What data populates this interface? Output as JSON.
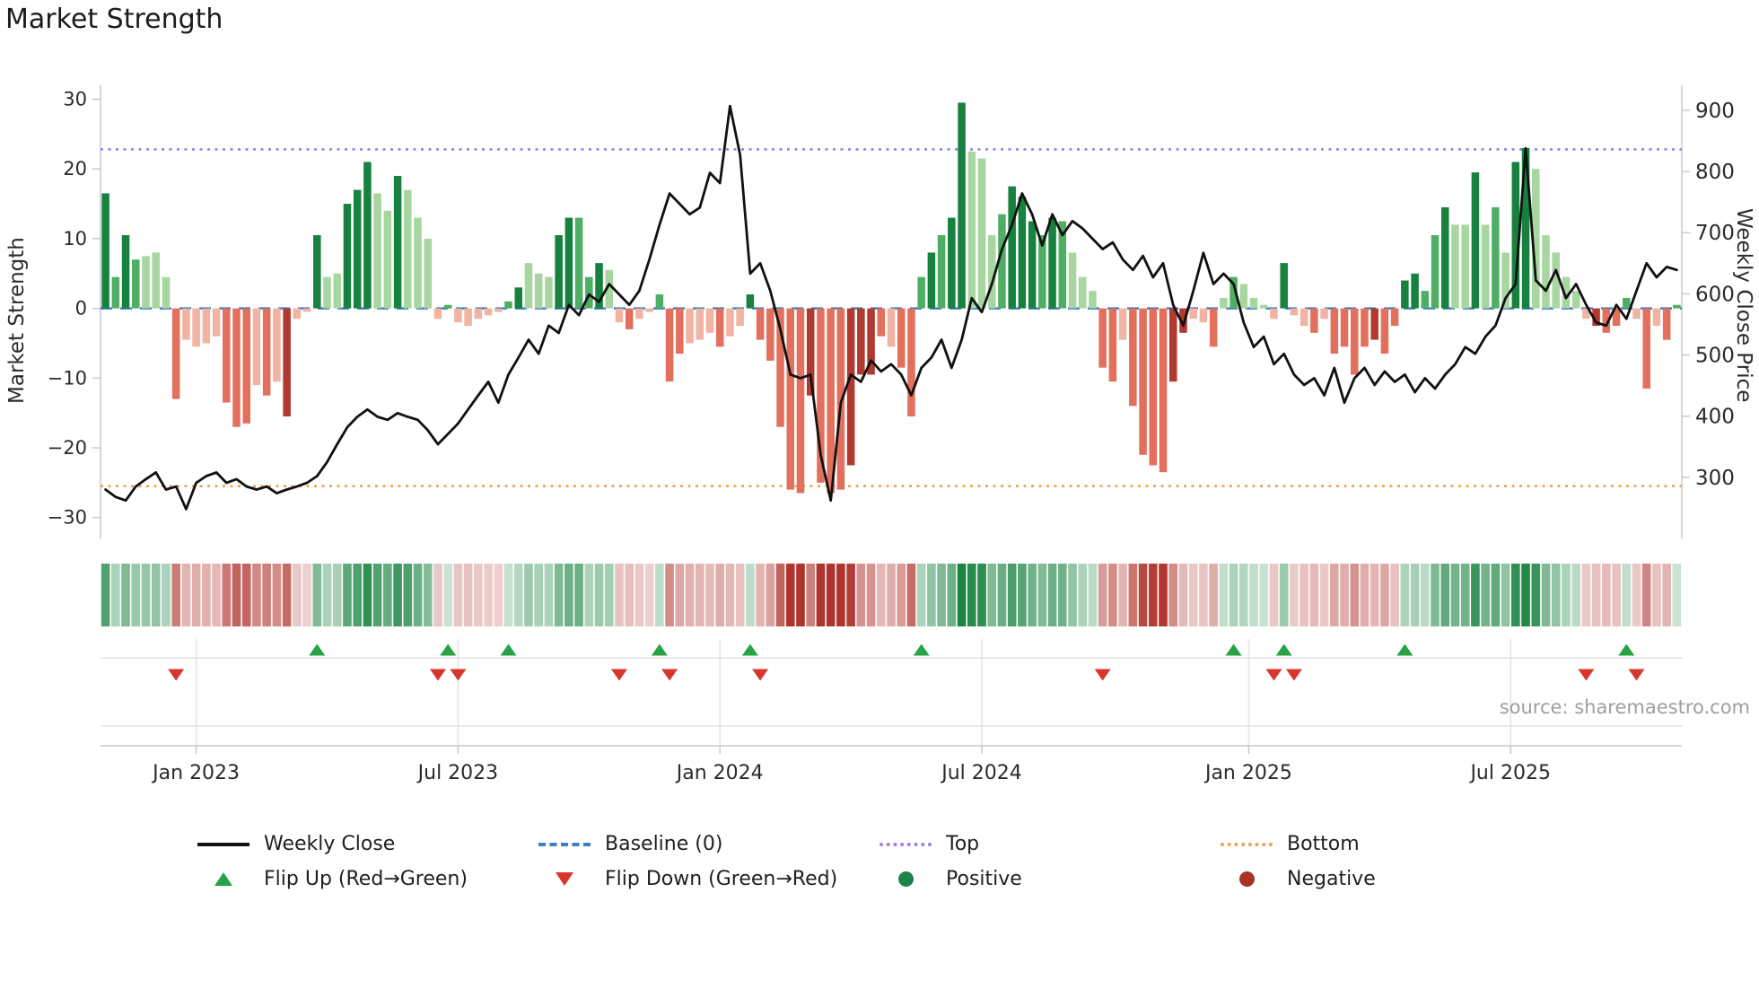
{
  "chart_data": {
    "type": "bar",
    "title": "Market Strength",
    "source": "source: sharemaestro.com",
    "left_axis": {
      "label": "Market Strength",
      "min": -33,
      "max": 32,
      "ticks": [
        {
          "v": 30,
          "label": "30"
        },
        {
          "v": 20,
          "label": "20"
        },
        {
          "v": 10,
          "label": "10"
        },
        {
          "v": 0,
          "label": "0"
        },
        {
          "v": -10,
          "label": "−10"
        },
        {
          "v": -20,
          "label": "−20"
        },
        {
          "v": -30,
          "label": "−30"
        }
      ]
    },
    "right_axis": {
      "label": "Weekly Close Price",
      "min": 200,
      "max": 941,
      "ticks": [
        {
          "v": 900,
          "label": "900"
        },
        {
          "v": 800,
          "label": "800"
        },
        {
          "v": 700,
          "label": "700"
        },
        {
          "v": 600,
          "label": "600"
        },
        {
          "v": 500,
          "label": "500"
        },
        {
          "v": 400,
          "label": "400"
        },
        {
          "v": 300,
          "label": "300"
        }
      ]
    },
    "x_ticks": [
      {
        "label": "Jan 2023",
        "i": 9
      },
      {
        "label": "Jul 2023",
        "i": 35
      },
      {
        "label": "Jan 2024",
        "i": 61
      },
      {
        "label": "Jul 2024",
        "i": 87
      },
      {
        "label": "Jan 2025",
        "i": 113.5
      },
      {
        "label": "Jul 2025",
        "i": 139.5
      }
    ],
    "top_line": 22.8,
    "bottom_line": -25.5,
    "baseline": 0,
    "strength": {
      "values": [
        16.5,
        4.5,
        10.5,
        7,
        7.5,
        8,
        4.5,
        -13,
        -4.5,
        -5.5,
        -5,
        -4,
        -13.5,
        -17,
        -16.5,
        -11,
        -12.5,
        -10.5,
        -15.5,
        -1.5,
        -0.5,
        10.5,
        4.5,
        5,
        15,
        17,
        21,
        16.5,
        14,
        19,
        17,
        13,
        10,
        -1.5,
        0.5,
        -2,
        -2.5,
        -1.5,
        -1,
        -0.5,
        1,
        3,
        6.5,
        5,
        4.5,
        10.5,
        13,
        13,
        4.5,
        6.5,
        5.5,
        -2,
        -3,
        -1.5,
        -0.5,
        2,
        -10.5,
        -6.5,
        -5,
        -4.5,
        -3.5,
        -5.5,
        -4,
        -2.5,
        2,
        -4.5,
        -7.5,
        -17,
        -26,
        -26.5,
        -12.5,
        -25,
        -26.5,
        -26,
        -22.5,
        -9.5,
        -9.5,
        -4,
        -5.5,
        -8.5,
        -15.5,
        4.5,
        8,
        10.5,
        13,
        29.5,
        22.5,
        21.5,
        10.5,
        13.5,
        17.5,
        16,
        12.5,
        10.5,
        13,
        12.5,
        8,
        4.5,
        2.5,
        -8.5,
        -10.5,
        -4.5,
        -14,
        -21,
        -22.5,
        -23.5,
        -10.5,
        -3.5,
        -1.5,
        -2,
        -5.5,
        1.5,
        4.5,
        3.5,
        1.5,
        0.5,
        -1.5,
        6.5,
        -1,
        -2.5,
        -3.5,
        -1.5,
        -6.5,
        -5.5,
        -9.5,
        -5.5,
        -4.5,
        -6.5,
        -2.5,
        4,
        5,
        2.5,
        10.5,
        14.5,
        12,
        12,
        19.5,
        12,
        14.5,
        8,
        21,
        23,
        20,
        10.5,
        8,
        4.5,
        2.5,
        -1.5,
        -2.5,
        -3.5,
        -2.5,
        1.5,
        -1.5,
        -11.5,
        -2.5,
        -4.5,
        0.5
      ],
      "shades": [
        "g3",
        "g2",
        "g3",
        "g2",
        "g1",
        "g1",
        "g1",
        "r2",
        "r1",
        "r1",
        "r1",
        "r1",
        "r2",
        "r2",
        "r2",
        "r1",
        "r2",
        "r1",
        "r3",
        "r1",
        "r1",
        "g3",
        "g1",
        "g1",
        "g3",
        "g3",
        "g3",
        "g1",
        "g1",
        "g3",
        "g1",
        "g1",
        "g1",
        "r1",
        "g2",
        "r1",
        "r1",
        "r1",
        "r1",
        "r1",
        "g2",
        "g3",
        "g1",
        "g1",
        "g1",
        "g3",
        "g3",
        "g2",
        "g2",
        "g3",
        "g1",
        "r1",
        "r2",
        "r1",
        "r1",
        "g2",
        "r2",
        "r2",
        "r1",
        "r1",
        "r1",
        "r2",
        "r1",
        "r1",
        "g3",
        "r2",
        "r2",
        "r2",
        "r2",
        "r2",
        "r3",
        "r2",
        "r2",
        "r2",
        "r3",
        "r3",
        "r3",
        "r2",
        "r1",
        "r2",
        "r2",
        "g2",
        "g3",
        "g2",
        "g3",
        "g3",
        "g1",
        "g1",
        "g1",
        "g2",
        "g3",
        "g3",
        "g3",
        "g2",
        "g3",
        "g2",
        "g1",
        "g1",
        "g1",
        "r2",
        "r2",
        "r1",
        "r2",
        "r2",
        "r2",
        "r2",
        "r3",
        "r3",
        "r1",
        "r1",
        "r2",
        "g1",
        "g2",
        "g1",
        "g1",
        "g1",
        "r1",
        "g3",
        "r1",
        "r1",
        "r2",
        "r1",
        "r2",
        "r2",
        "r2",
        "r2",
        "r3",
        "r2",
        "r2",
        "g3",
        "g3",
        "g2",
        "g2",
        "g3",
        "g1",
        "g1",
        "g3",
        "g1",
        "g2",
        "g1",
        "g3",
        "g3",
        "g1",
        "g1",
        "g1",
        "g1",
        "g1",
        "r1",
        "r3",
        "r2",
        "r2",
        "g2",
        "r1",
        "r2",
        "r1",
        "r2",
        "g2"
      ]
    },
    "price": [
      280,
      268,
      262,
      285,
      297,
      308,
      280,
      285,
      248,
      291,
      302,
      308,
      291,
      297,
      285,
      280,
      285,
      274,
      280,
      285,
      291,
      302,
      325,
      354,
      382,
      399,
      411,
      399,
      394,
      405,
      399,
      394,
      377,
      354,
      371,
      388,
      411,
      434,
      456,
      422,
      468,
      496,
      525,
      502,
      548,
      536,
      582,
      565,
      599,
      587,
      616,
      599,
      582,
      605,
      656,
      713,
      764,
      747,
      730,
      741,
      798,
      781,
      907,
      827,
      633,
      650,
      605,
      542,
      468,
      462,
      468,
      337,
      262,
      422,
      468,
      456,
      491,
      473,
      485,
      468,
      434,
      479,
      496,
      525,
      479,
      525,
      593,
      570,
      616,
      673,
      713,
      764,
      730,
      679,
      730,
      696,
      719,
      707,
      690,
      673,
      684,
      656,
      639,
      662,
      627,
      650,
      582,
      548,
      605,
      667,
      616,
      633,
      616,
      553,
      513,
      530,
      485,
      502,
      468,
      451,
      462,
      434,
      479,
      422,
      462,
      479,
      451,
      473,
      456,
      468,
      439,
      462,
      445,
      468,
      485,
      513,
      502,
      530,
      548,
      593,
      616,
      838,
      622,
      605,
      639,
      593,
      616,
      582,
      553,
      548,
      582,
      559,
      605,
      650,
      627,
      644,
      639
    ],
    "flip_up_indexes": [
      21,
      34,
      40,
      55,
      64,
      81,
      112,
      117,
      129,
      151
    ],
    "flip_down_indexes": [
      7,
      33,
      35,
      51,
      56,
      65,
      99,
      116,
      118,
      147,
      152
    ],
    "legend": [
      "Weekly Close",
      "Baseline (0)",
      "Top",
      "Bottom",
      "Flip Up (Red→Green)",
      "Flip Down (Green→Red)",
      "Positive",
      "Negative"
    ],
    "colors": {
      "price_line": "#111111",
      "baseline": "#3d7fc1",
      "top": "#9b7fe8",
      "bottom": "#efa14d",
      "flip_up": "#27a245",
      "flip_down": "#d6362b",
      "positive": "#1d8348",
      "negative": "#a93226",
      "shade_palette": {
        "g1": "#a7d6a0",
        "g2": "#4fae63",
        "g3": "#17813f",
        "r1": "#f1b3a2",
        "r2": "#e2705c",
        "r3": "#b03a30"
      },
      "heat_green": "26,132,66",
      "heat_red": "176,52,45",
      "spine": "#c9c9c9",
      "grid": "#e3e3e3",
      "tick_text": "#2b2b2b"
    }
  }
}
